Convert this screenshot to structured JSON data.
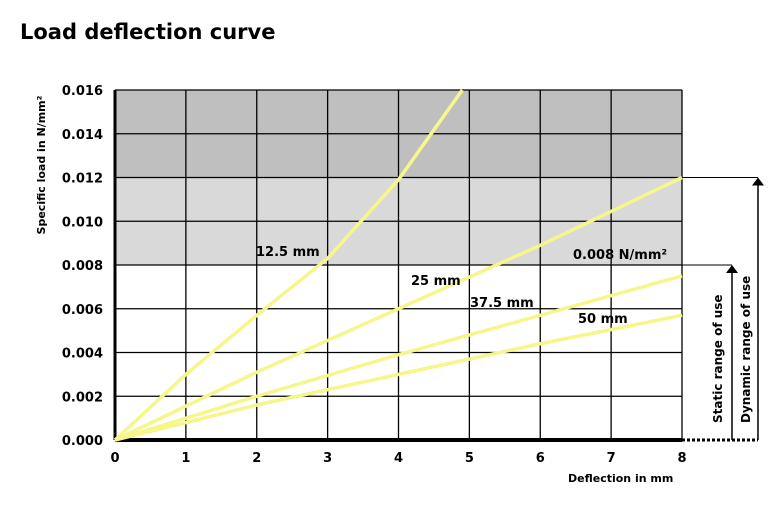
{
  "chart_data": {
    "type": "line",
    "title": "Load deflection curve",
    "xlabel": "Deflection in mm",
    "ylabel": "Specific load in N/mm²",
    "xlim": [
      0,
      8
    ],
    "ylim": [
      0,
      0.016
    ],
    "grid": true,
    "x_ticks": [
      "0",
      "1",
      "2",
      "3",
      "4",
      "5",
      "6",
      "7",
      "8"
    ],
    "y_ticks": [
      "0.000",
      "0.002",
      "0.004",
      "0.006",
      "0.008",
      "0.010",
      "0.012",
      "0.014",
      "0.016"
    ],
    "bands": [
      {
        "from": 0.008,
        "to": 0.012,
        "color": "#d9d9d9"
      },
      {
        "from": 0.012,
        "to": 0.016,
        "color": "#bfbfbf"
      }
    ],
    "series_color": "#f5f78a",
    "series": [
      {
        "name": "12.5 mm",
        "x": [
          0,
          1,
          2,
          3,
          4,
          4.9
        ],
        "y": [
          0,
          0.003,
          0.0057,
          0.0083,
          0.0119,
          0.016
        ]
      },
      {
        "name": "25 mm",
        "x": [
          0,
          2,
          4,
          6,
          8
        ],
        "y": [
          0,
          0.0031,
          0.006,
          0.0089,
          0.012
        ]
      },
      {
        "name": "37.5 mm",
        "x": [
          0,
          2,
          4,
          6,
          8
        ],
        "y": [
          0,
          0.002,
          0.0039,
          0.0057,
          0.0075
        ]
      },
      {
        "name": "50 mm",
        "x": [
          0,
          2,
          4,
          6,
          8
        ],
        "y": [
          0,
          0.0016,
          0.003,
          0.0044,
          0.0057
        ]
      }
    ],
    "annotations": {
      "threshold": "0.008 N/mm²",
      "static": "Static range of use",
      "dynamic": "Dynamic range of use"
    }
  }
}
